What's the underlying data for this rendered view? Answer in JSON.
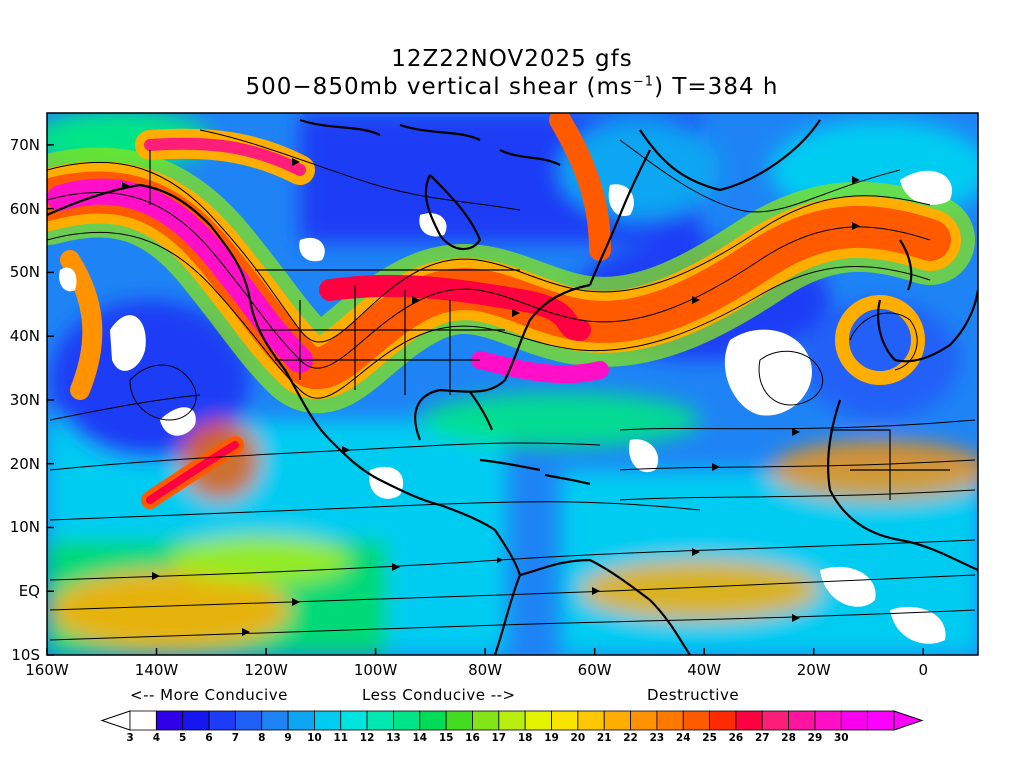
{
  "title": {
    "line1": "12Z22NOV2025 gfs",
    "line2_prefix": "500−850mb vertical shear (ms",
    "line2_sup": "−1",
    "line2_suffix": ") T=384 h"
  },
  "axes": {
    "x_labels": [
      "160W",
      "140W",
      "120W",
      "100W",
      "80W",
      "60W",
      "40W",
      "20W",
      "0"
    ],
    "y_labels": [
      "70N",
      "60N",
      "50N",
      "40N",
      "30N",
      "20N",
      "10N",
      "EQ",
      "10S"
    ]
  },
  "map_extent": {
    "lon_min": -160,
    "lon_max": 10,
    "lat_min": -10,
    "lat_max": 75
  },
  "legend": {
    "more_conducive": "<-- More Conducive",
    "less_conducive": "Less Conducive -->",
    "destructive": "Destructive",
    "ticks": [
      "3",
      "4",
      "5",
      "6",
      "7",
      "8",
      "9",
      "10",
      "11",
      "12",
      "13",
      "14",
      "15",
      "16",
      "17",
      "18",
      "19",
      "20",
      "21",
      "22",
      "23",
      "24",
      "25",
      "26",
      "27",
      "28",
      "29",
      "30"
    ],
    "colors": [
      "#ffffff",
      "#2f00e8",
      "#1616f0",
      "#1e3cf5",
      "#2060f7",
      "#1e84f5",
      "#0ea6f2",
      "#00ccf2",
      "#00e4e0",
      "#00e8b0",
      "#00e488",
      "#00dc58",
      "#42dc22",
      "#84e41a",
      "#b8ee10",
      "#e4f400",
      "#f8e400",
      "#ffc800",
      "#ffae00",
      "#ff9200",
      "#ff7800",
      "#ff5a00",
      "#ff2a00",
      "#ff0040",
      "#ff1e78",
      "#ff14a0",
      "#ff10c8",
      "#f800ee",
      "#ff00ff"
    ]
  }
}
